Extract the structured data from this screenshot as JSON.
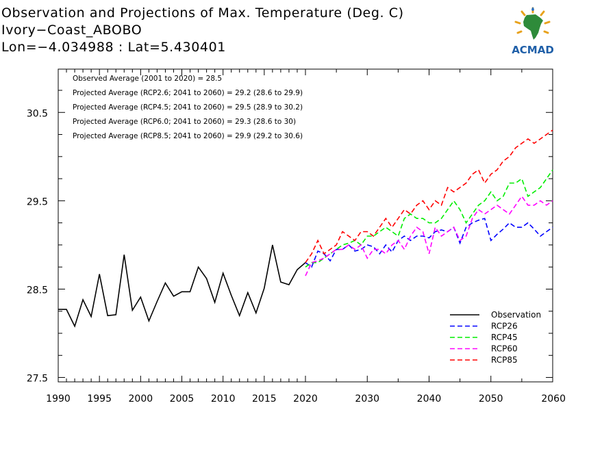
{
  "header": {
    "title": "Observation and Projections of Max. Temperature (Deg. C)",
    "location": "Ivory−Coast_ABOBO",
    "coords": "Lon=−4.034988 : Lat=5.430401"
  },
  "logo": {
    "text": "ACMAD"
  },
  "annotations": [
    "Observed Average (2001 to 2020) = 28.5",
    "Projected Average (RCP2.6; 2041 to 2060) = 29.2 (28.6 to 29.9)",
    "Projected Average (RCP4.5; 2041 to 2060) = 29.5 (28.9 to 30.2)",
    "Projected Average (RCP6.0; 2041 to 2060) = 29.3 (28.6 to 30)",
    "Projected Average (RCP8.5; 2041 to 2060) = 29.9 (29.2 to 30.6)"
  ],
  "chart_data": {
    "type": "line",
    "title": "Observation and Projections of Max. Temperature (Deg. C)",
    "xlabel": "",
    "ylabel": "",
    "ylim": [
      27.45,
      30.99
    ],
    "y_ticks": [
      27.5,
      28.5,
      29.5,
      30.5
    ],
    "y_tick_labels": [
      "27.5",
      "28.5",
      "29.5",
      "30.5"
    ],
    "x_ticks_left": [
      1990,
      1995,
      2000,
      2005,
      2010,
      2015,
      2020
    ],
    "x_ticks_right": [
      2030,
      2040,
      2050,
      2060
    ],
    "x_tick_labels_left": [
      "1990",
      "1995",
      "2000",
      "2005",
      "2010",
      "2015",
      "2020"
    ],
    "x_tick_labels_right": [
      "2030",
      "2040",
      "2050",
      "2060"
    ],
    "x_axis_note": "piecewise: 1990-2020 and 2020-2060 drawn with different spacing",
    "legend_position": "bottom-right",
    "series": [
      {
        "name": "Observation",
        "color": "#000000",
        "dashed": false,
        "x": [
          1990,
          1991,
          1992,
          1993,
          1994,
          1995,
          1996,
          1997,
          1998,
          1999,
          2000,
          2001,
          2002,
          2003,
          2004,
          2005,
          2006,
          2007,
          2008,
          2009,
          2010,
          2011,
          2012,
          2013,
          2014,
          2015,
          2016,
          2017,
          2018,
          2019,
          2020
        ],
        "values": [
          28.27,
          28.27,
          28.08,
          28.38,
          28.19,
          28.67,
          28.2,
          28.21,
          28.89,
          28.26,
          28.41,
          28.14,
          28.36,
          28.57,
          28.42,
          28.47,
          28.47,
          28.75,
          28.62,
          28.35,
          28.68,
          28.43,
          28.2,
          28.46,
          28.23,
          28.51,
          29.0,
          28.58,
          28.55,
          28.72,
          28.8
        ]
      },
      {
        "name": "RCP26",
        "color": "#0000ff",
        "dashed": true,
        "x": [
          2020,
          2021,
          2022,
          2023,
          2024,
          2025,
          2026,
          2027,
          2028,
          2029,
          2030,
          2031,
          2032,
          2033,
          2034,
          2035,
          2036,
          2037,
          2038,
          2039,
          2040,
          2041,
          2042,
          2043,
          2044,
          2045,
          2046,
          2047,
          2048,
          2049,
          2050,
          2051,
          2052,
          2053,
          2054,
          2055,
          2056,
          2057,
          2058,
          2059,
          2060
        ],
        "values": [
          28.8,
          28.75,
          28.93,
          28.9,
          28.82,
          28.95,
          28.95,
          29.0,
          28.93,
          28.95,
          29.0,
          28.98,
          28.9,
          29.0,
          28.92,
          29.05,
          29.1,
          29.05,
          29.1,
          29.1,
          29.08,
          29.15,
          29.17,
          29.15,
          29.2,
          29.02,
          29.2,
          29.25,
          29.28,
          29.3,
          29.05,
          29.12,
          29.18,
          29.25,
          29.2,
          29.2,
          29.25,
          29.18,
          29.1,
          29.15,
          29.2
        ]
      },
      {
        "name": "RCP45",
        "color": "#00ee00",
        "dashed": true,
        "x": [
          2020,
          2021,
          2022,
          2023,
          2024,
          2025,
          2026,
          2027,
          2028,
          2029,
          2030,
          2031,
          2032,
          2033,
          2034,
          2035,
          2036,
          2037,
          2038,
          2039,
          2040,
          2041,
          2042,
          2043,
          2044,
          2045,
          2046,
          2047,
          2048,
          2049,
          2050,
          2051,
          2052,
          2053,
          2054,
          2055,
          2056,
          2057,
          2058,
          2059,
          2060
        ],
        "values": [
          28.75,
          28.8,
          28.8,
          28.85,
          28.9,
          28.95,
          29.0,
          29.02,
          29.05,
          29.0,
          29.1,
          29.1,
          29.15,
          29.2,
          29.15,
          29.1,
          29.3,
          29.35,
          29.3,
          29.3,
          29.25,
          29.25,
          29.3,
          29.4,
          29.5,
          29.4,
          29.25,
          29.35,
          29.45,
          29.5,
          29.6,
          29.5,
          29.55,
          29.7,
          29.7,
          29.75,
          29.55,
          29.6,
          29.65,
          29.75,
          29.85
        ]
      },
      {
        "name": "RCP60",
        "color": "#ff00ff",
        "dashed": true,
        "x": [
          2020,
          2021,
          2022,
          2023,
          2024,
          2025,
          2026,
          2027,
          2028,
          2029,
          2030,
          2031,
          2032,
          2033,
          2034,
          2035,
          2036,
          2037,
          2038,
          2039,
          2040,
          2041,
          2042,
          2043,
          2044,
          2045,
          2046,
          2047,
          2048,
          2049,
          2050,
          2051,
          2052,
          2053,
          2054,
          2055,
          2056,
          2057,
          2058,
          2059,
          2060
        ],
        "values": [
          28.65,
          28.8,
          28.82,
          28.85,
          28.9,
          28.95,
          28.95,
          29.0,
          28.95,
          29.0,
          28.85,
          28.95,
          28.95,
          28.9,
          29.0,
          29.05,
          28.95,
          29.1,
          29.2,
          29.15,
          28.9,
          29.2,
          29.1,
          29.15,
          29.2,
          29.05,
          29.1,
          29.3,
          29.4,
          29.35,
          29.4,
          29.45,
          29.4,
          29.35,
          29.45,
          29.55,
          29.45,
          29.45,
          29.5,
          29.45,
          29.5
        ]
      },
      {
        "name": "RCP85",
        "color": "#ff0000",
        "dashed": true,
        "x": [
          2020,
          2021,
          2022,
          2023,
          2024,
          2025,
          2026,
          2027,
          2028,
          2029,
          2030,
          2031,
          2032,
          2033,
          2034,
          2035,
          2036,
          2037,
          2038,
          2039,
          2040,
          2041,
          2042,
          2043,
          2044,
          2045,
          2046,
          2047,
          2048,
          2049,
          2050,
          2051,
          2052,
          2053,
          2054,
          2055,
          2056,
          2057,
          2058,
          2059,
          2060
        ],
        "values": [
          28.8,
          28.9,
          29.05,
          28.9,
          28.95,
          29.0,
          29.15,
          29.1,
          29.05,
          29.15,
          29.15,
          29.1,
          29.2,
          29.3,
          29.2,
          29.3,
          29.4,
          29.35,
          29.45,
          29.5,
          29.4,
          29.5,
          29.45,
          29.65,
          29.6,
          29.65,
          29.7,
          29.8,
          29.85,
          29.7,
          29.8,
          29.85,
          29.95,
          30.0,
          30.1,
          30.15,
          30.2,
          30.15,
          30.2,
          30.25,
          30.3
        ]
      }
    ]
  }
}
